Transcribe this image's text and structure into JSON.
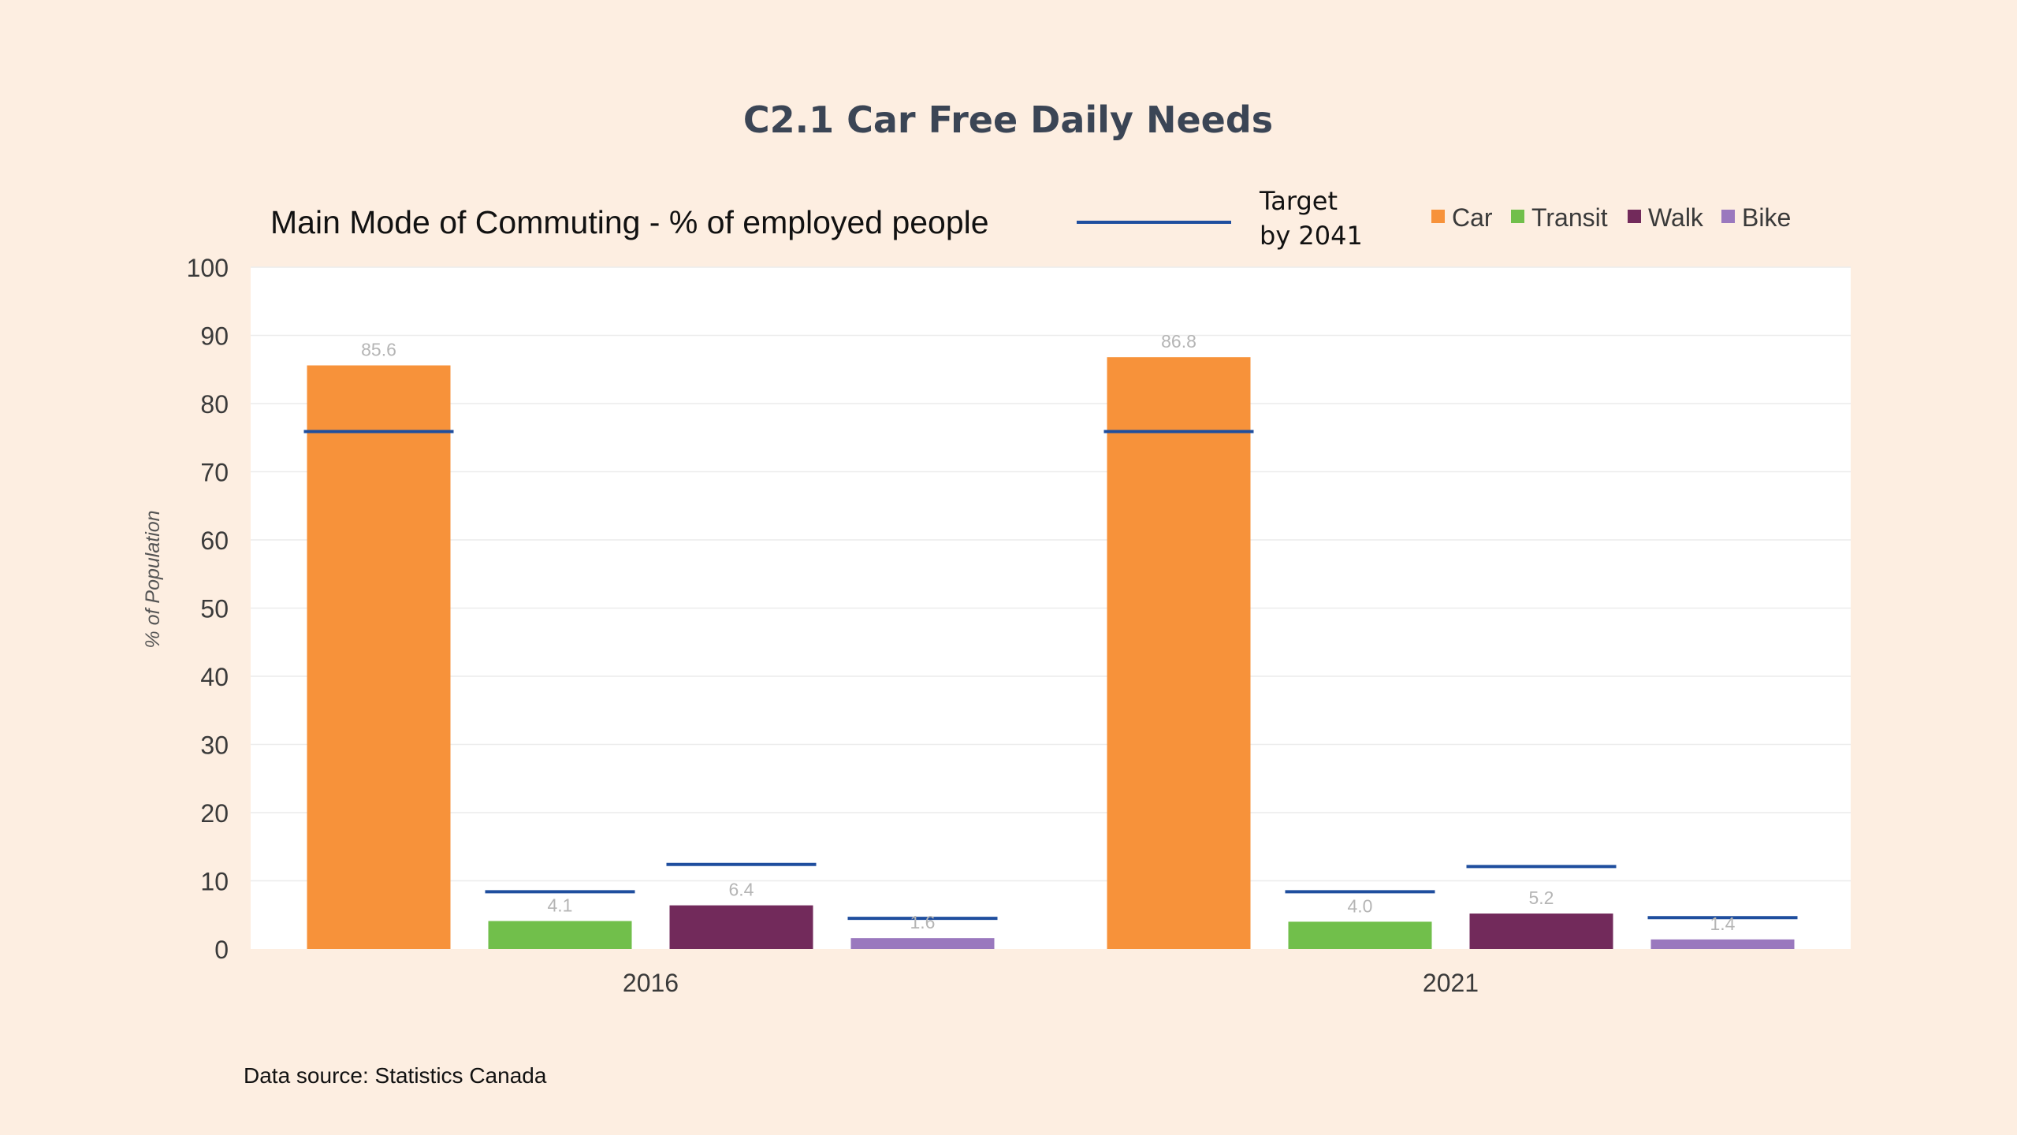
{
  "page": {
    "title": "C2.1 Car Free Daily Needs",
    "source": "Data source: Statistics Canada"
  },
  "colors": {
    "background": "#fdeee1",
    "plot_background": "#ffffff",
    "target_line": "#1f4e9e"
  },
  "chart_data": {
    "type": "bar",
    "title": "Main Mode of Commuting - % of employed people",
    "xlabel": "",
    "ylabel": "% of Population",
    "ylim": [
      0,
      100
    ],
    "yticks": [
      0,
      10,
      20,
      30,
      40,
      50,
      60,
      70,
      80,
      90,
      100
    ],
    "grid": true,
    "legend_position": "top-right",
    "categories": [
      "2016",
      "2021"
    ],
    "series": [
      {
        "name": "Car",
        "color": "#f7923a",
        "values": [
          85.6,
          86.8
        ],
        "labels": [
          "85.6",
          "86.8"
        ]
      },
      {
        "name": "Transit",
        "color": "#71bf4b",
        "values": [
          4.1,
          4.0
        ],
        "labels": [
          "4.1",
          "4.0"
        ]
      },
      {
        "name": "Walk",
        "color": "#722a5b",
        "values": [
          6.4,
          5.2
        ],
        "labels": [
          "6.4",
          "5.2"
        ]
      },
      {
        "name": "Bike",
        "color": "#9a78be",
        "values": [
          1.6,
          1.4
        ],
        "labels": [
          "1.6",
          "1.4"
        ]
      }
    ],
    "target": {
      "name_lines": [
        "Target",
        "by 2041"
      ],
      "color": "#1f4e9e",
      "values": {
        "Car": [
          75.9,
          75.9
        ],
        "Transit": [
          8.4,
          8.4
        ],
        "Walk": [
          12.4,
          12.1
        ],
        "Bike": [
          4.5,
          4.6
        ]
      }
    }
  }
}
